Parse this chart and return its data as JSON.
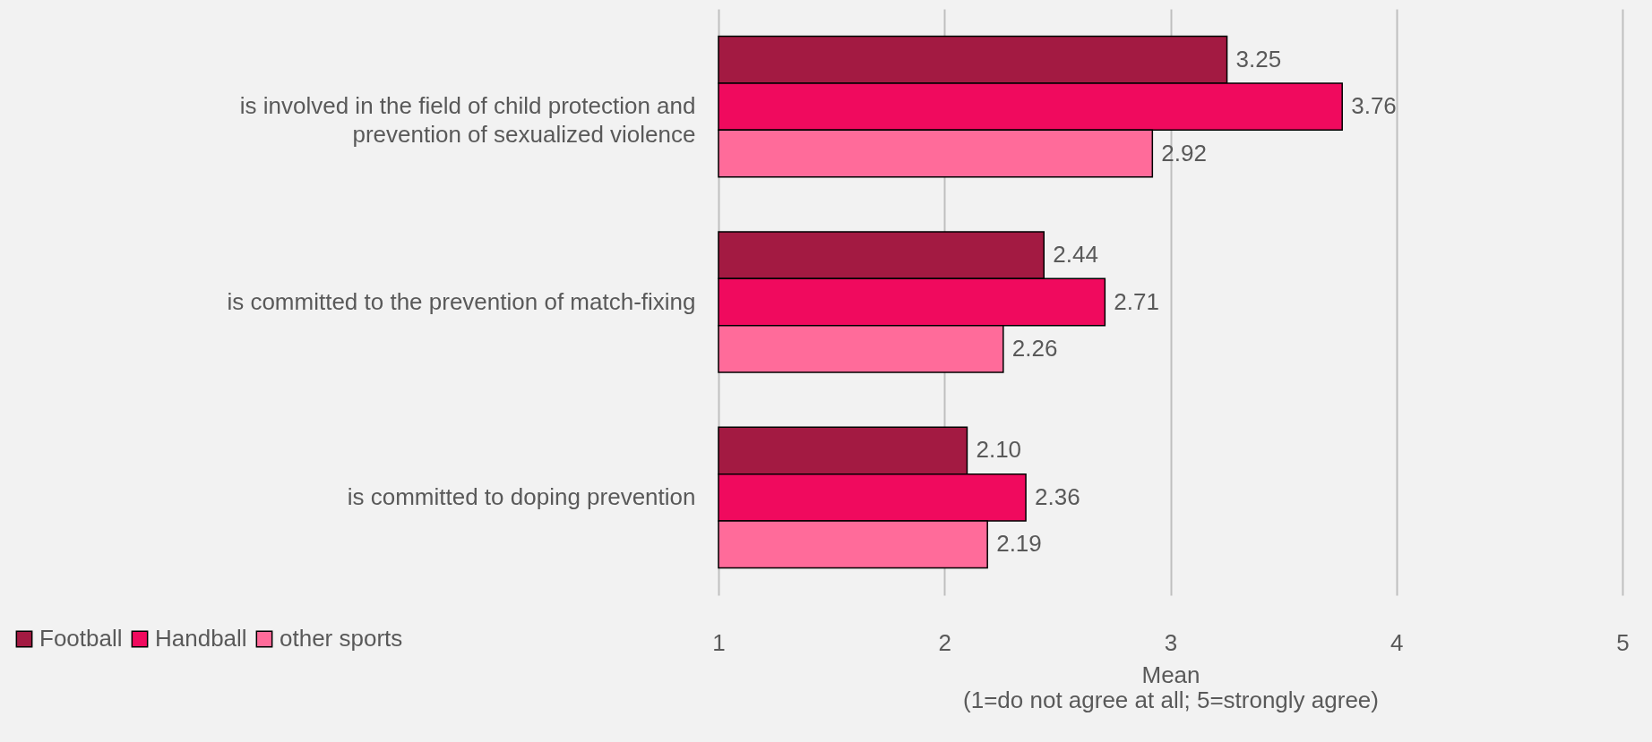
{
  "chart_data": {
    "type": "bar",
    "orientation": "horizontal",
    "xlabel": "Mean\n(1=do not agree at all; 5=strongly agree)",
    "categories": [
      "is involved in the field of child protection and\nprevention of sexualized violence",
      "is committed to the prevention of match-fixing",
      "is committed to doping prevention"
    ],
    "series": [
      {
        "name": "Football",
        "color": "#a31a42",
        "values": [
          3.25,
          2.44,
          2.1
        ],
        "value_labels": [
          "3.25",
          "2.44",
          "2.10"
        ]
      },
      {
        "name": "Handball",
        "color": "#f00a5e",
        "values": [
          3.76,
          2.71,
          2.36
        ],
        "value_labels": [
          "3.76",
          "2.71",
          "2.36"
        ]
      },
      {
        "name": "other sports",
        "color": "#ff6b9a",
        "values": [
          2.92,
          2.26,
          2.19
        ],
        "value_labels": [
          "2.92",
          "2.26",
          "2.19"
        ]
      }
    ],
    "xlim": [
      1,
      5
    ],
    "xticks": [
      1,
      2,
      3,
      4,
      5
    ],
    "grid": "x",
    "legend": "bottom left"
  }
}
